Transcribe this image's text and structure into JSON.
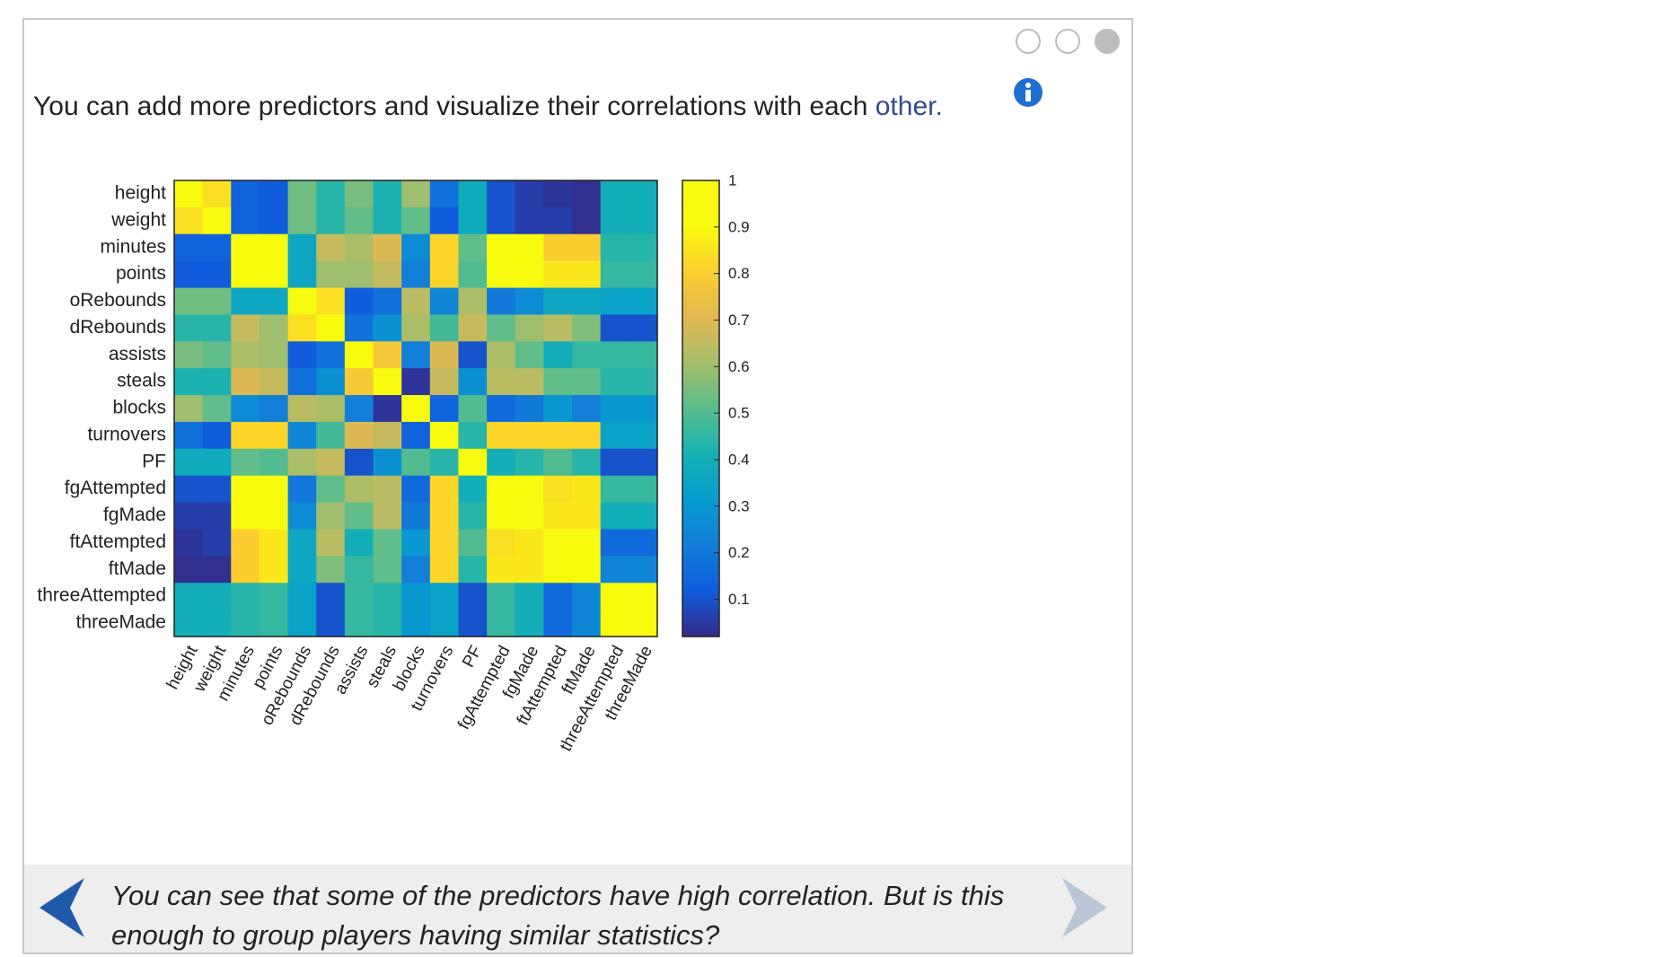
{
  "headline": {
    "text": "You can add more predictors and visualize their correlations with each ",
    "link": "other."
  },
  "progress_dots": {
    "count": 3,
    "active_index": 2
  },
  "footer": {
    "text": "You can see that some of the predictors have high correlation. But is this enough to group players having similar statistics?"
  },
  "icons": {
    "info": "info-icon",
    "prev": "chevron-left-icon",
    "next": "chevron-right-icon"
  },
  "colors": {
    "link": "#344a8c",
    "info_icon": "#1f6fd1",
    "prev_arrow": "#1e5aa8",
    "next_arrow": "#b9c6d6"
  },
  "chart_data": {
    "type": "heatmap",
    "labels": [
      "height",
      "weight",
      "minutes",
      "points",
      "oRebounds",
      "dRebounds",
      "assists",
      "steals",
      "blocks",
      "turnovers",
      "PF",
      "fgAttempted",
      "fgMade",
      "ftAttempted",
      "ftMade",
      "threeAttempted",
      "threeMade"
    ],
    "values": [
      [
        1.0,
        0.84,
        0.14,
        0.12,
        0.54,
        0.44,
        0.55,
        0.42,
        0.6,
        0.18,
        0.38,
        0.1,
        0.06,
        0.04,
        0.03,
        0.4,
        0.4
      ],
      [
        0.84,
        1.0,
        0.14,
        0.12,
        0.54,
        0.44,
        0.52,
        0.42,
        0.52,
        0.12,
        0.38,
        0.1,
        0.06,
        0.06,
        0.03,
        0.4,
        0.4
      ],
      [
        0.14,
        0.14,
        1.0,
        0.94,
        0.36,
        0.66,
        0.62,
        0.7,
        0.26,
        0.82,
        0.52,
        0.94,
        0.94,
        0.8,
        0.8,
        0.44,
        0.44
      ],
      [
        0.12,
        0.12,
        0.94,
        1.0,
        0.36,
        0.6,
        0.6,
        0.66,
        0.22,
        0.82,
        0.5,
        0.96,
        0.98,
        0.86,
        0.86,
        0.46,
        0.46
      ],
      [
        0.54,
        0.54,
        0.36,
        0.36,
        1.0,
        0.84,
        0.12,
        0.18,
        0.64,
        0.24,
        0.62,
        0.2,
        0.26,
        0.36,
        0.36,
        0.34,
        0.34
      ],
      [
        0.44,
        0.44,
        0.66,
        0.6,
        0.84,
        1.0,
        0.18,
        0.28,
        0.62,
        0.48,
        0.66,
        0.52,
        0.6,
        0.64,
        0.56,
        0.1,
        0.1
      ],
      [
        0.55,
        0.52,
        0.62,
        0.6,
        0.12,
        0.18,
        1.0,
        0.78,
        0.22,
        0.7,
        0.1,
        0.62,
        0.52,
        0.4,
        0.46,
        0.46,
        0.46
      ],
      [
        0.42,
        0.42,
        0.7,
        0.66,
        0.18,
        0.28,
        0.78,
        1.0,
        0.04,
        0.66,
        0.28,
        0.64,
        0.64,
        0.52,
        0.52,
        0.44,
        0.44
      ],
      [
        0.6,
        0.52,
        0.26,
        0.22,
        0.64,
        0.62,
        0.22,
        0.04,
        1.0,
        0.14,
        0.5,
        0.16,
        0.2,
        0.3,
        0.22,
        0.3,
        0.3
      ],
      [
        0.18,
        0.12,
        0.82,
        0.82,
        0.24,
        0.48,
        0.7,
        0.66,
        0.14,
        1.0,
        0.44,
        0.82,
        0.82,
        0.82,
        0.82,
        0.34,
        0.34
      ],
      [
        0.38,
        0.38,
        0.52,
        0.5,
        0.62,
        0.66,
        0.1,
        0.28,
        0.5,
        0.44,
        1.0,
        0.4,
        0.44,
        0.5,
        0.44,
        0.1,
        0.1
      ],
      [
        0.1,
        0.1,
        0.94,
        0.96,
        0.2,
        0.52,
        0.62,
        0.64,
        0.16,
        0.82,
        0.4,
        1.0,
        0.98,
        0.84,
        0.86,
        0.46,
        0.46
      ],
      [
        0.06,
        0.06,
        0.94,
        0.98,
        0.26,
        0.6,
        0.52,
        0.64,
        0.2,
        0.82,
        0.44,
        0.98,
        1.0,
        0.86,
        0.86,
        0.4,
        0.4
      ],
      [
        0.04,
        0.06,
        0.8,
        0.86,
        0.36,
        0.64,
        0.4,
        0.52,
        0.3,
        0.82,
        0.5,
        0.84,
        0.86,
        1.0,
        0.98,
        0.16,
        0.16
      ],
      [
        0.03,
        0.03,
        0.8,
        0.86,
        0.36,
        0.56,
        0.46,
        0.52,
        0.22,
        0.82,
        0.44,
        0.86,
        0.86,
        0.98,
        1.0,
        0.24,
        0.24
      ],
      [
        0.4,
        0.4,
        0.44,
        0.46,
        0.34,
        0.1,
        0.46,
        0.44,
        0.3,
        0.34,
        0.1,
        0.46,
        0.4,
        0.16,
        0.24,
        1.0,
        0.98
      ],
      [
        0.4,
        0.4,
        0.44,
        0.46,
        0.34,
        0.1,
        0.46,
        0.44,
        0.3,
        0.34,
        0.1,
        0.46,
        0.4,
        0.16,
        0.24,
        0.98,
        1.0
      ]
    ],
    "colorbar": {
      "min": 0.02,
      "max": 1,
      "ticks": [
        0.1,
        0.2,
        0.3,
        0.4,
        0.5,
        0.6,
        0.7,
        0.8,
        0.9,
        1
      ],
      "tick_labels": [
        "0.1",
        "0.2",
        "0.3",
        "0.4",
        "0.5",
        "0.6",
        "0.7",
        "0.8",
        "0.9",
        "1"
      ]
    },
    "colormap": "parula"
  }
}
